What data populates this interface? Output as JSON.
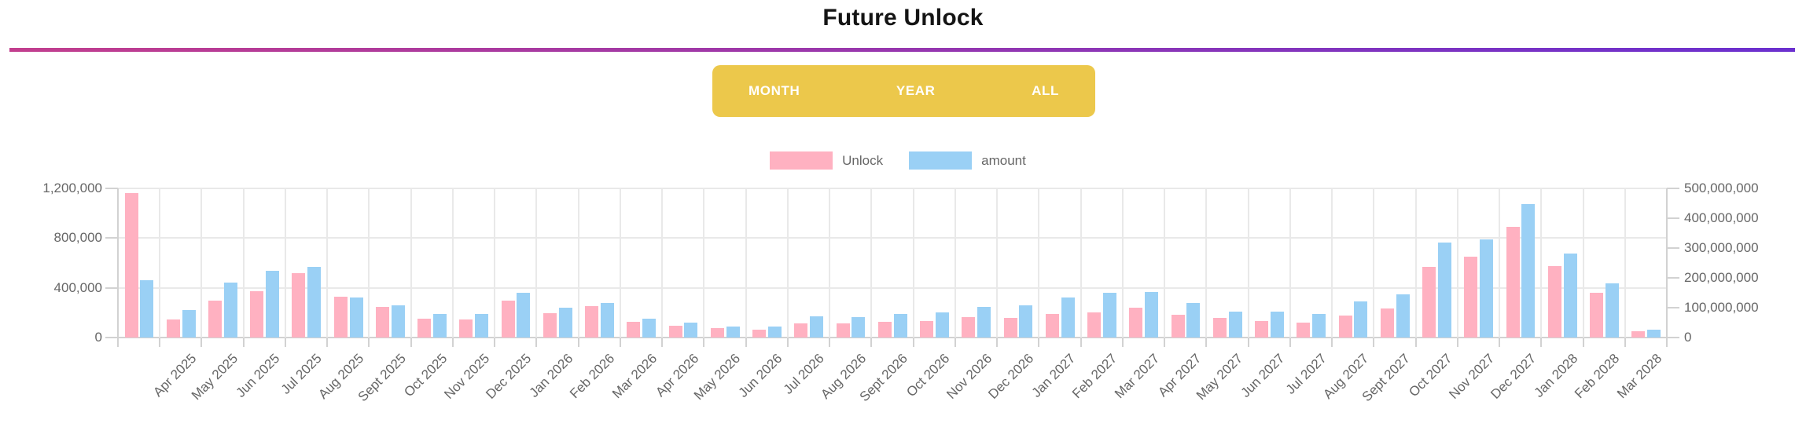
{
  "title": "Future Unlock",
  "divider_gradient": {
    "from": "#C23E8E",
    "to": "#6B30CF"
  },
  "toolbar": {
    "background": "#ECC84B",
    "buttons": [
      "MONTH",
      "YEAR",
      "ALL"
    ]
  },
  "legend": [
    {
      "label": "Unlock",
      "color": "#FFB1C1"
    },
    {
      "label": "amount",
      "color": "#9AD0F5"
    }
  ],
  "chart_data": {
    "type": "bar",
    "title": "Future Unlock",
    "note": "37 bar pairs; the first (tallest pink) pair has no visible x-axis label",
    "grid": true,
    "legend_position": "top",
    "categories": [
      "",
      "Apr 2025",
      "May 2025",
      "Jun 2025",
      "Jul 2025",
      "Aug 2025",
      "Sept 2025",
      "Oct 2025",
      "Nov 2025",
      "Dec 2025",
      "Jan 2026",
      "Feb 2026",
      "Mar 2026",
      "Apr 2026",
      "May 2026",
      "Jun 2026",
      "Jul 2026",
      "Aug 2026",
      "Sept 2026",
      "Oct 2026",
      "Nov 2026",
      "Dec 2026",
      "Jan 2027",
      "Feb 2027",
      "Mar 2027",
      "Apr 2027",
      "May 2027",
      "Jun 2027",
      "Jul 2027",
      "Aug 2027",
      "Sept 2027",
      "Oct 2027",
      "Nov 2027",
      "Dec 2027",
      "Jan 2028",
      "Feb 2028",
      "Mar 2028"
    ],
    "series": [
      {
        "name": "Unlock",
        "axis": "left",
        "color": "#FFB1C1",
        "values": [
          1160000,
          145000,
          295000,
          375000,
          515000,
          330000,
          245000,
          150000,
          148000,
          298000,
          195000,
          255000,
          125000,
          97000,
          73000,
          64000,
          112000,
          112000,
          125000,
          133000,
          166000,
          160000,
          190000,
          205000,
          237000,
          183000,
          155000,
          130000,
          120000,
          176000,
          232000,
          570000,
          650000,
          890000,
          572000,
          361000,
          52000
        ]
      },
      {
        "name": "amount",
        "axis": "right",
        "color": "#9AD0F5",
        "values": [
          193000000,
          92000000,
          185000000,
          224000000,
          237000000,
          133000000,
          108000000,
          78000000,
          80000000,
          150000000,
          100000000,
          117000000,
          64000000,
          49000000,
          38000000,
          36000000,
          70000000,
          69000000,
          79000000,
          83000000,
          103000000,
          107000000,
          134000000,
          150000000,
          152000000,
          116000000,
          87000000,
          88000000,
          78000000,
          121000000,
          145000000,
          318000000,
          330000000,
          448000000,
          282000000,
          181000000,
          25000000
        ]
      }
    ],
    "left_axis": {
      "max": 1200000,
      "ticks": [
        {
          "v": 1200000,
          "label": "1,200,000"
        },
        {
          "v": 800000,
          "label": "800,000"
        },
        {
          "v": 400000,
          "label": "400,000"
        },
        {
          "v": 0,
          "label": "0"
        }
      ]
    },
    "right_axis": {
      "max": 500000000,
      "ticks": [
        {
          "v": 500000000,
          "label": "500,000,000"
        },
        {
          "v": 400000000,
          "label": "400,000,000"
        },
        {
          "v": 300000000,
          "label": "300,000,000"
        },
        {
          "v": 200000000,
          "label": "200,000,000"
        },
        {
          "v": 100000000,
          "label": "100,000,000"
        },
        {
          "v": 0,
          "label": "0"
        }
      ]
    }
  }
}
